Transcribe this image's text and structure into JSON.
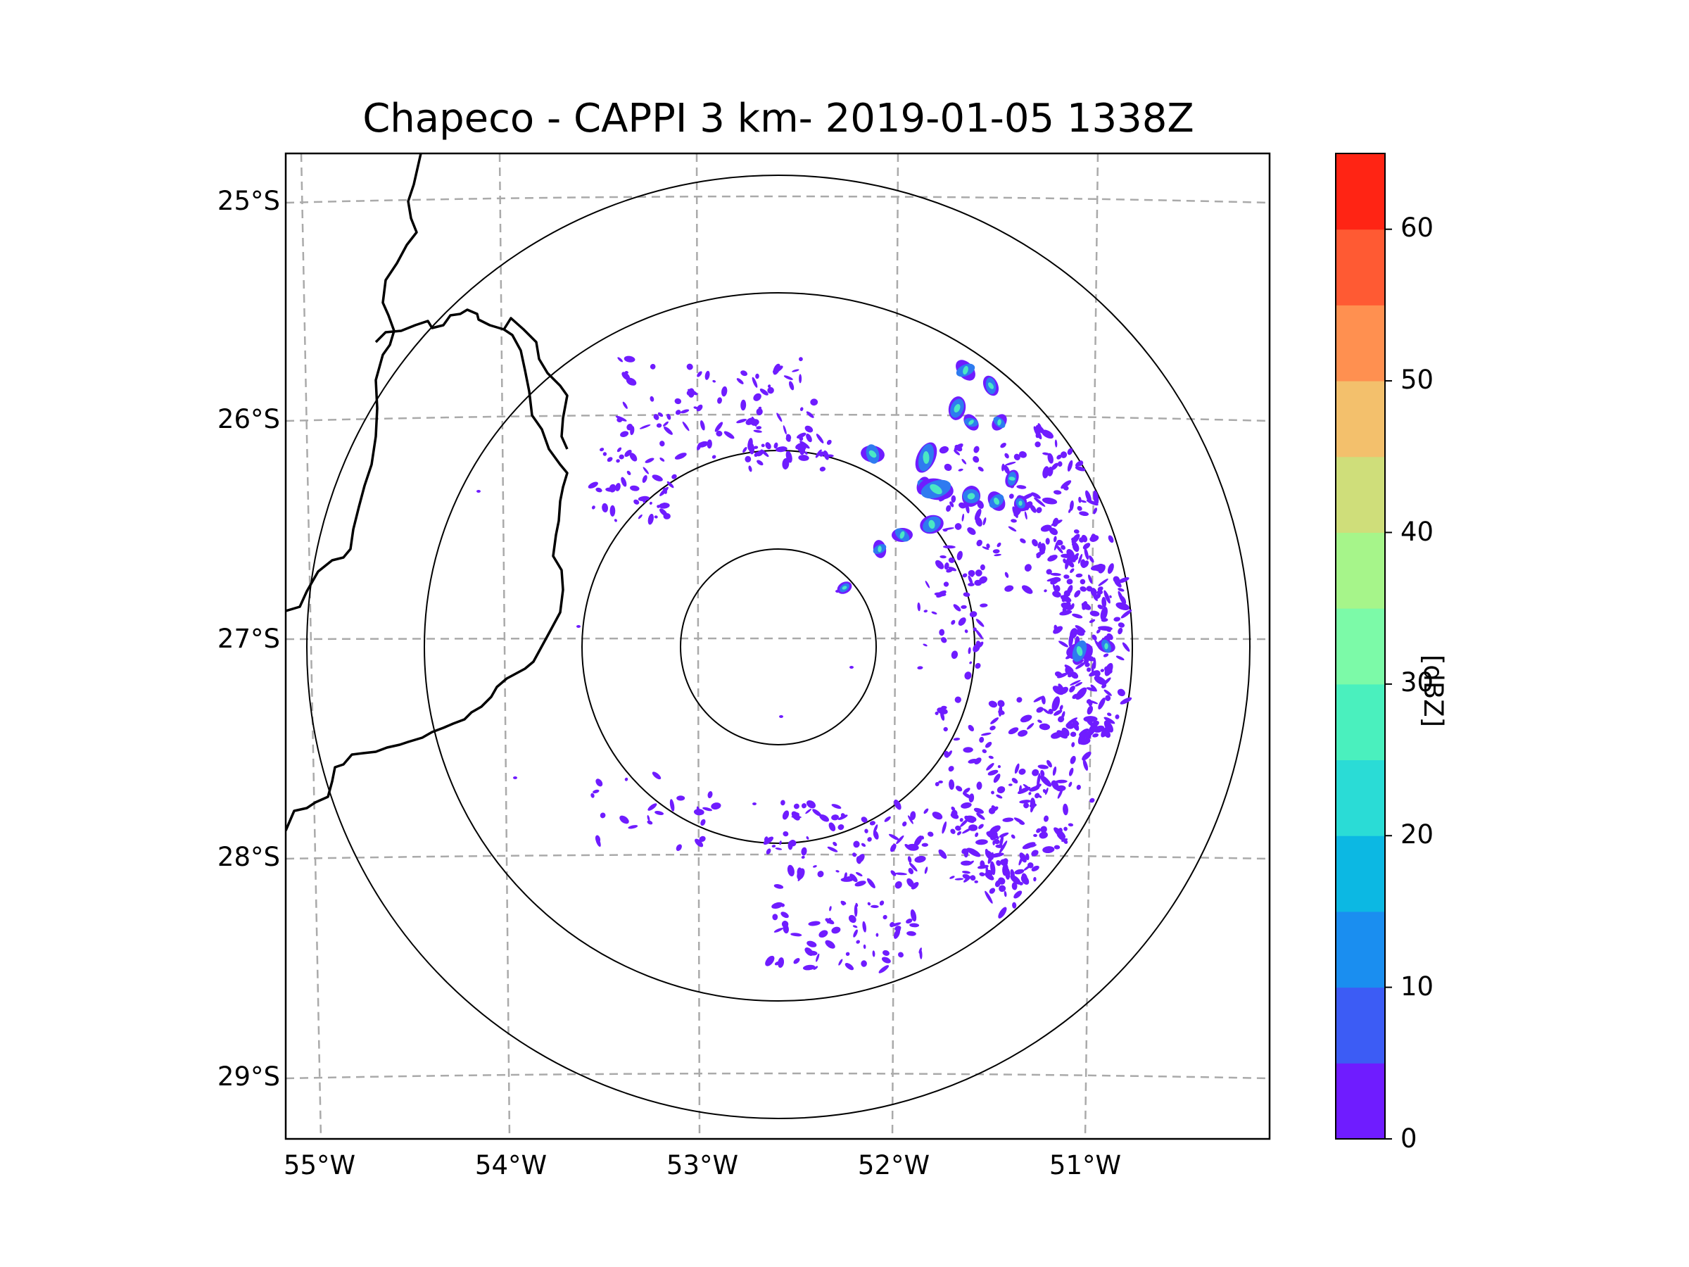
{
  "title": "Chapeco - CAPPI 3 km- 2019-01-05 1338Z",
  "map": {
    "lat_labels": [
      "25°S",
      "26°S",
      "27°S",
      "28°S",
      "29°S"
    ],
    "lon_labels": [
      "55°W",
      "54°W",
      "53°W",
      "52°W",
      "51°W"
    ],
    "lat_range": [
      -29.3,
      -24.8
    ],
    "lon_range": [
      -55.1,
      -50.1
    ],
    "radar_center": {
      "lat": -27.03,
      "lon": -52.6
    },
    "range_rings": 4
  },
  "colorbar": {
    "label": "[dBZ]",
    "ticks": [
      "0",
      "10",
      "20",
      "30",
      "40",
      "50",
      "60"
    ],
    "min": 0,
    "max": 65,
    "colors": [
      "#6f1cff",
      "#3c5cf5",
      "#1a8ef0",
      "#0cb8e3",
      "#2adcd6",
      "#4af0be",
      "#7cfaa8",
      "#a6f58a",
      "#cfde7a",
      "#f3c06c",
      "#ff9050",
      "#ff5a33",
      "#ff2414"
    ]
  },
  "colors": {
    "weak_echo": "#6f1cff",
    "moderate_echo": "#2e7bf0",
    "strong_echo": "#4ae8c4",
    "border": "#000000",
    "gridline": "#aaaaaa"
  }
}
